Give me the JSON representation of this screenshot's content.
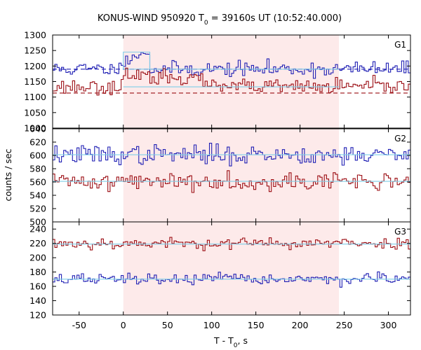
{
  "chart_data": {
    "type": "line",
    "title": "KONUS-WIND 950920 T",
    "title_sub": "0",
    "title_rest": " = 39160s UT (10:52:40.000)",
    "xlabel": "T - T",
    "xlabel_sub": "0",
    "xlabel_rest": ", s",
    "ylabel": "counts / sec",
    "xlim": [
      -80,
      325
    ],
    "x_ticks": [
      -50,
      0,
      50,
      100,
      150,
      200,
      250,
      300
    ],
    "shaded_interval": [
      0,
      244
    ],
    "colors": {
      "blue": "#1f1fb4",
      "red": "#9b0d13",
      "fit": "#7ecde8",
      "shade": "#fdeaea"
    },
    "panels": [
      {
        "label": "G1",
        "ylim": [
          1000,
          1300
        ],
        "y_ticks": [
          1000,
          1050,
          1100,
          1150,
          1200,
          1250,
          1300
        ],
        "series": [
          {
            "color": "blue",
            "mean": 1190,
            "noise": 22,
            "seed": 11,
            "bumps": [
              {
                "from": 0,
                "to": 30,
                "add": 55
              }
            ],
            "fit": {
              "style": "solid",
              "value": 1190,
              "from": 0,
              "to": 244,
              "extra": {
                "from": 0,
                "to": 30,
                "value": 1245
              }
            },
            "bg": {
              "style": "dashed",
              "value": 1190
            }
          },
          {
            "color": "red",
            "mean": 1133,
            "noise": 22,
            "seed": 23,
            "bumps": [
              {
                "from": 0,
                "to": 90,
                "add": 40
              }
            ],
            "fit": {
              "style": "solid",
              "value": 1133,
              "from": 0,
              "to": 244
            },
            "bg": {
              "style": "dashed",
              "value": 1113
            }
          }
        ]
      },
      {
        "label": "G2",
        "ylim": [
          500,
          640
        ],
        "y_ticks": [
          500,
          520,
          540,
          560,
          580,
          600,
          620,
          640
        ],
        "series": [
          {
            "color": "blue",
            "mean": 601,
            "noise": 13,
            "seed": 37,
            "fit": {
              "style": "solid",
              "value": 601,
              "from": -80,
              "to": 325
            }
          },
          {
            "color": "red",
            "mean": 561,
            "noise": 12,
            "seed": 41,
            "fit": {
              "style": "solid",
              "value": 561,
              "from": -80,
              "to": 325
            }
          }
        ]
      },
      {
        "label": "G3",
        "ylim": [
          120,
          250
        ],
        "y_ticks": [
          120,
          140,
          160,
          180,
          200,
          220,
          240
        ],
        "series": [
          {
            "color": "red",
            "mean": 220,
            "noise": 7,
            "seed": 53,
            "fit": {
              "style": "solid",
              "value": 219,
              "from": -80,
              "to": 325
            }
          },
          {
            "color": "blue",
            "mean": 170,
            "noise": 7,
            "seed": 67,
            "fit": {
              "style": "solid",
              "value": 170,
              "from": -80,
              "to": 325
            }
          }
        ]
      }
    ]
  }
}
